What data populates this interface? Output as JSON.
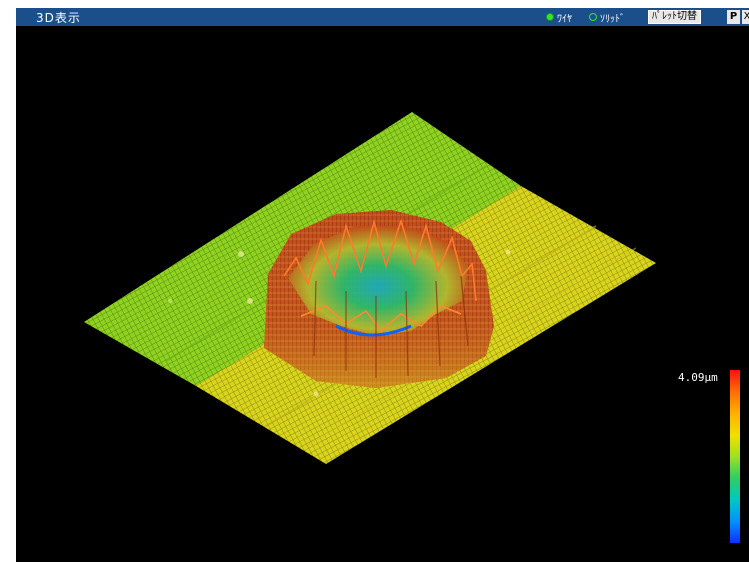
{
  "window": {
    "title": "3D表示",
    "view_mode": {
      "wire_label": "ﾜｲﾔ",
      "solid_label": "ｿﾘｯﾄﾞ",
      "selected": "wire"
    },
    "palette_button_label": "ﾊﾟﾚｯﾄ切替",
    "p_button_label": "P",
    "extra_button_label": "X"
  },
  "colors": {
    "titlebar": "#1b4f8c",
    "background": "#000000",
    "plane_left": "#8fd21f",
    "plane_right": "#d7d21a",
    "mound_rim": "#c24a12",
    "mound_center": "#18c8a0"
  },
  "color_scale": {
    "max_label": "4.09μm",
    "stops": [
      "#ff1010",
      "#ff6a00",
      "#ffb000",
      "#f0e000",
      "#a0e020",
      "#30d060",
      "#00c8c0",
      "#0090ff",
      "#1030ff"
    ]
  }
}
